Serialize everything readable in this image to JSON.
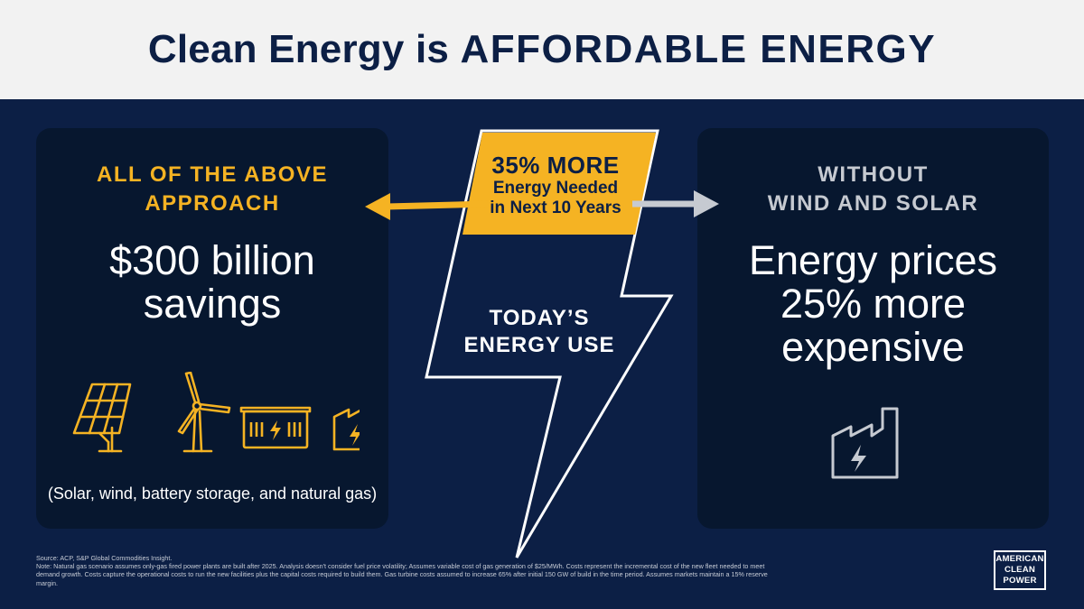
{
  "title": {
    "part1": "Clean Energy is ",
    "part2": "AFFORDABLE ENERGY"
  },
  "left_panel": {
    "heading_line1": "ALL OF THE ABOVE",
    "heading_line2": "APPROACH",
    "main_line1": "$300 billion",
    "main_line2": "savings",
    "caption": "(Solar, wind, battery storage, and natural gas)",
    "icons": [
      "solar-panel-icon",
      "wind-turbine-icon",
      "battery-storage-icon",
      "factory-icon"
    ]
  },
  "right_panel": {
    "heading_line1": "WITHOUT",
    "heading_line2": "WIND AND SOLAR",
    "main_line1": "Energy prices",
    "main_line2": "25% more",
    "main_line3": "expensive",
    "icons": [
      "factory-icon"
    ]
  },
  "center": {
    "callout_big": "35% MORE",
    "callout_line1": "Energy Needed",
    "callout_line2": "in Next 10 Years",
    "bolt_line1": "TODAY’S",
    "bolt_line2": "ENERGY USE"
  },
  "source": {
    "line1": "Source: ACP, S&P Global Commodities Insight.",
    "line2": "Note: Natural gas scenario assumes only-gas fired power plants are built after 2025. Analysis doesn't consider fuel price volatility; Assumes variable cost of gas generation of $25/MWh. Costs represent the incremental cost of the new fleet needed to meet demand growth. Costs capture the operational costs to run the new facilities plus the capital costs required to build them. Gas turbine costs assumed to increase 65% after initial 150 GW of build in the time period. Assumes markets maintain a 15% reserve margin."
  },
  "logo": {
    "line1": "AMERICAN",
    "line2": "CLEAN",
    "line3": "POWER"
  },
  "colors": {
    "background": "#0c1f45",
    "panel": "#07172f",
    "accent_yellow": "#f5b323",
    "gray": "#c6cad1",
    "header_bg": "#f2f2f2"
  }
}
